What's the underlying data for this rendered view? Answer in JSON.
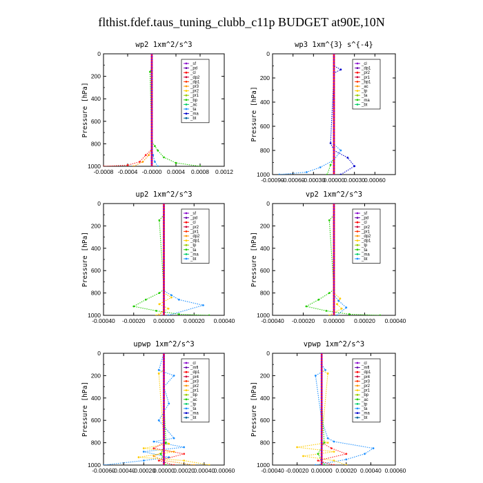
{
  "title": "flthist.fdef.taus_tuning_clubb_c11p  BUDGET at90E,10N",
  "chart_data": [
    {
      "type": "line",
      "title": "wp2  1xm^2/s^3",
      "ylabel": "Pressure [hPa]",
      "ylim": [
        1000,
        0
      ],
      "yticks": [
        0,
        200,
        400,
        600,
        800,
        1000
      ],
      "xlim": [
        -0.0008,
        0.0012
      ],
      "xticks": [
        "-0.0008",
        "-0.0004",
        "-0.0000",
        "0.0004",
        "0.0008",
        "0.0012"
      ],
      "xtick_values": [
        -0.0008,
        -0.0004,
        0,
        0.0004,
        0.0008,
        0.0012
      ],
      "legend": [
        "_sf",
        "_pd",
        "_cl",
        "_dp2",
        "_dp1",
        "_pr3",
        "_pr2",
        "_pr1",
        "_bp",
        "_ac",
        "_ta",
        "_ma",
        "_bt"
      ],
      "series": [
        {
          "color": "#ff2020",
          "x": [
            -0.0008,
            -0.0004,
            -0.0002,
            -0.0001,
            0,
            0
          ],
          "y": [
            1000,
            990,
            960,
            900,
            850,
            0
          ]
        },
        {
          "color": "#ff9900",
          "x": [
            -0.0003,
            -0.00015,
            -5e-05,
            0,
            0
          ],
          "y": [
            1000,
            960,
            900,
            850,
            0
          ]
        },
        {
          "color": "#22cc00",
          "x": [
            0.0008,
            0.0004,
            0.0002,
            0.0001,
            5e-05,
            0,
            -3e-05,
            0,
            0
          ],
          "y": [
            1000,
            970,
            920,
            860,
            820,
            780,
            160,
            120,
            0
          ]
        },
        {
          "color": "#1e90ff",
          "x": [
            0.0001,
            5e-05,
            2e-05,
            0,
            0
          ],
          "y": [
            1000,
            960,
            900,
            850,
            0
          ]
        },
        {
          "color": "#8800cc",
          "x": [
            0,
            0
          ],
          "y": [
            1000,
            0
          ]
        }
      ]
    },
    {
      "type": "line",
      "title": "wp3  1xm^{3} s^{-4}",
      "ylabel": "Pressure [hPa]",
      "ylim": [
        1000,
        0
      ],
      "yticks": [
        0,
        200,
        400,
        600,
        800,
        1000
      ],
      "xlim": [
        -0.0009,
        0.0009
      ],
      "xticks": [
        "-0.00090",
        "-0.00060",
        "-0.00030",
        "0.00000",
        "0.00030",
        "0.00060"
      ],
      "xtick_values": [
        -0.0009,
        -0.0006,
        -0.0003,
        0,
        0.0003,
        0.0006
      ],
      "legend": [
        "_cl",
        "_dp1",
        "_pr2",
        "_pr1",
        "_bp1",
        "_ac",
        "_tp",
        "_ta",
        "_ma",
        "_bt"
      ],
      "series": [
        {
          "color": "#1e90ff",
          "x": [
            -0.0008,
            -0.0004,
            -0.0002,
            0,
            0.0001,
            0,
            0
          ],
          "y": [
            1000,
            980,
            940,
            880,
            800,
            750,
            0
          ]
        },
        {
          "color": "#0000cc",
          "x": [
            0.0001,
            0.0003,
            0.0002,
            0,
            -5e-05,
            0,
            0.0001,
            0,
            0
          ],
          "y": [
            1000,
            930,
            860,
            800,
            740,
            160,
            130,
            100,
            0
          ]
        },
        {
          "color": "#22cc00",
          "x": [
            -0.0001,
            -5e-05,
            0,
            0
          ],
          "y": [
            1000,
            920,
            860,
            0
          ]
        },
        {
          "color": "#ff2020",
          "x": [
            0,
            0
          ],
          "y": [
            1000,
            0
          ]
        }
      ]
    },
    {
      "type": "line",
      "title": "up2  1xm^2/s^3",
      "ylabel": "Pressure [hPa]",
      "ylim": [
        1000,
        0
      ],
      "yticks": [
        0,
        200,
        400,
        600,
        800,
        1000
      ],
      "xlim": [
        -0.0004,
        0.0004
      ],
      "xticks": [
        "-0.00040",
        "-0.00020",
        "0.00000",
        "0.00020",
        "0.00040"
      ],
      "xtick_values": [
        -0.0004,
        -0.0002,
        0,
        0.0002,
        0.0004
      ],
      "legend": [
        "_sf",
        "_pd",
        "_cl",
        "_pr2",
        "_pr1",
        "_dp2",
        "_dp1",
        "_tp",
        "_ta",
        "_ma",
        "_bt"
      ],
      "series": [
        {
          "color": "#22cc00",
          "x": [
            0.0003,
            0.0001,
            -5e-05,
            -0.0002,
            -0.00012,
            -3e-05,
            0,
            -3e-05,
            0,
            0
          ],
          "y": [
            1000,
            990,
            960,
            920,
            860,
            800,
            770,
            150,
            100,
            0
          ]
        },
        {
          "color": "#ffcc00",
          "x": [
            -5e-05,
            3e-05,
            -3e-05,
            5e-05,
            0,
            0
          ],
          "y": [
            1000,
            940,
            900,
            840,
            800,
            0
          ]
        },
        {
          "color": "#1e90ff",
          "x": [
            3e-05,
            0.00026,
            0.0001,
            5e-05,
            0,
            0
          ],
          "y": [
            1000,
            910,
            860,
            820,
            780,
            0
          ]
        },
        {
          "color": "#ff9900",
          "x": [
            -3e-05,
            0,
            0
          ],
          "y": [
            1000,
            950,
            0
          ]
        },
        {
          "color": "#ff2020",
          "x": [
            0,
            0
          ],
          "y": [
            1000,
            0
          ]
        }
      ]
    },
    {
      "type": "line",
      "title": "vp2  1xm^2/s^3",
      "ylabel": "Pressure [hPa]",
      "ylim": [
        1000,
        0
      ],
      "yticks": [
        0,
        200,
        400,
        600,
        800,
        1000
      ],
      "xlim": [
        -0.0004,
        0.0004
      ],
      "xticks": [
        "-0.00040",
        "-0.00020",
        "0.00000",
        "0.00020",
        "0.00040"
      ],
      "xtick_values": [
        -0.0004,
        -0.0002,
        0,
        0.0002,
        0.0004
      ],
      "legend": [
        "_sf",
        "_pd",
        "_cl",
        "_pr2",
        "_pr1",
        "_dp2",
        "_dp1",
        "_tp",
        "_ta",
        "_ma",
        "_bt"
      ],
      "series": [
        {
          "color": "#22cc00",
          "x": [
            0.0003,
            0.0001,
            -5e-05,
            -0.00018,
            -0.0001,
            -3e-05,
            0,
            -3e-05,
            0,
            0
          ],
          "y": [
            1000,
            990,
            960,
            920,
            860,
            800,
            770,
            150,
            100,
            0
          ]
        },
        {
          "color": "#ffcc00",
          "x": [
            -3e-05,
            5e-05,
            2e-05,
            4e-05,
            0,
            0
          ],
          "y": [
            1000,
            940,
            900,
            850,
            800,
            0
          ]
        },
        {
          "color": "#1e90ff",
          "x": [
            2e-05,
            8e-05,
            3e-05,
            0,
            0
          ],
          "y": [
            1000,
            930,
            870,
            820,
            0
          ]
        },
        {
          "color": "#ff2020",
          "x": [
            0,
            0
          ],
          "y": [
            1000,
            0
          ]
        }
      ]
    },
    {
      "type": "line",
      "title": "upwp  1xm^2/s^3",
      "ylabel": "Pressure [hPa]",
      "ylim": [
        1000,
        0
      ],
      "yticks": [
        0,
        200,
        400,
        600,
        800,
        1000
      ],
      "xlim": [
        -0.0006,
        0.0006
      ],
      "xticks": [
        "-0.00060",
        "-0.00040",
        "-0.00020",
        "0.00000",
        "0.00020",
        "0.00040",
        "0.00060"
      ],
      "xtick_values": [
        -0.0006,
        -0.0004,
        -0.0002,
        0,
        0.0002,
        0.0004,
        0.0006
      ],
      "legend": [
        "_cl",
        "_mfl",
        "_dp1",
        "_pr4",
        "_pr3",
        "_pr2",
        "_pr1",
        "_bp",
        "_ac",
        "_tp",
        "_ta",
        "_ma",
        "_bt"
      ],
      "series": [
        {
          "color": "#1e90ff",
          "x": [
            -0.0006,
            -0.0002,
            5e-05,
            -0.0002,
            0.0002,
            -0.0001,
            0.0001,
            -5e-05,
            5e-05,
            0,
            0.0001,
            -5e-05,
            0
          ],
          "y": [
            1000,
            960,
            930,
            880,
            840,
            790,
            760,
            600,
            450,
            300,
            200,
            150,
            0
          ]
        },
        {
          "color": "#ffcc00",
          "x": [
            0.00045,
            0.0002,
            -0.00025,
            0.0001,
            -0.0002,
            5e-05,
            0,
            -5e-05,
            0,
            0
          ],
          "y": [
            1000,
            960,
            930,
            880,
            850,
            810,
            780,
            180,
            150,
            0
          ]
        },
        {
          "color": "#ff2020",
          "x": [
            0.0001,
            -5e-05,
            0.0002,
            -0.0001,
            0,
            0
          ],
          "y": [
            1000,
            960,
            900,
            850,
            800,
            0
          ]
        },
        {
          "color": "#ff9900",
          "x": [
            0.0003,
            0,
            -0.0001,
            0,
            0
          ],
          "y": [
            1000,
            960,
            920,
            880,
            0
          ]
        },
        {
          "color": "#22cc00",
          "x": [
            2e-05,
            -3e-05,
            2e-05,
            0,
            0
          ],
          "y": [
            1000,
            900,
            800,
            400,
            0
          ]
        },
        {
          "color": "#8800cc",
          "x": [
            0,
            0
          ],
          "y": [
            1000,
            0
          ]
        }
      ]
    },
    {
      "type": "line",
      "title": "vpwp  1xm^2/s^3",
      "ylabel": "Pressure [hPa]",
      "ylim": [
        1000,
        0
      ],
      "yticks": [
        0,
        200,
        400,
        600,
        800,
        1000
      ],
      "xlim": [
        -0.0004,
        0.0006
      ],
      "xticks": [
        "-0.00040",
        "-0.00020",
        "0.00000",
        "0.00020",
        "0.00040",
        "0.00060"
      ],
      "xtick_values": [
        -0.0004,
        -0.0002,
        0,
        0.0002,
        0.0004,
        0.0006
      ],
      "legend": [
        "_cl",
        "_mfl",
        "_dp1",
        "_pr4",
        "_pr3",
        "_pr2",
        "_pr1",
        "_bp",
        "_ac",
        "_tp",
        "_ta",
        "_ma",
        "_bt"
      ],
      "series": [
        {
          "color": "#1e90ff",
          "x": [
            -5e-05,
            0.0002,
            0.00035,
            0.00042,
            0.0001,
            5e-05,
            0,
            -5e-05,
            3e-05,
            0,
            0
          ],
          "y": [
            1000,
            950,
            900,
            850,
            790,
            760,
            600,
            200,
            150,
            100,
            0
          ]
        },
        {
          "color": "#ffcc00",
          "x": [
            0.0002,
            0.0001,
            -0.00015,
            0.0001,
            -0.0002,
            5e-05,
            0,
            5e-05,
            0,
            0
          ],
          "y": [
            1000,
            960,
            920,
            880,
            840,
            800,
            780,
            180,
            150,
            0
          ]
        },
        {
          "color": "#ff2020",
          "x": [
            0.0001,
            -3e-05,
            0.0002,
            8e-05,
            0,
            0
          ],
          "y": [
            1000,
            960,
            900,
            850,
            800,
            0
          ]
        },
        {
          "color": "#22cc00",
          "x": [
            2e-05,
            -3e-05,
            2e-05,
            0,
            0
          ],
          "y": [
            1000,
            900,
            800,
            400,
            0
          ]
        },
        {
          "color": "#8800cc",
          "x": [
            0,
            0
          ],
          "y": [
            1000,
            0
          ]
        }
      ]
    }
  ],
  "legend_colors": [
    "#8800cc",
    "#6600aa",
    "#ff0000",
    "#cc0033",
    "#ff3300",
    "#ff9900",
    "#ffcc00",
    "#99cc00",
    "#22cc00",
    "#00cc66",
    "#1e90ff",
    "#0000cc",
    "#006699",
    "#00cccc"
  ]
}
